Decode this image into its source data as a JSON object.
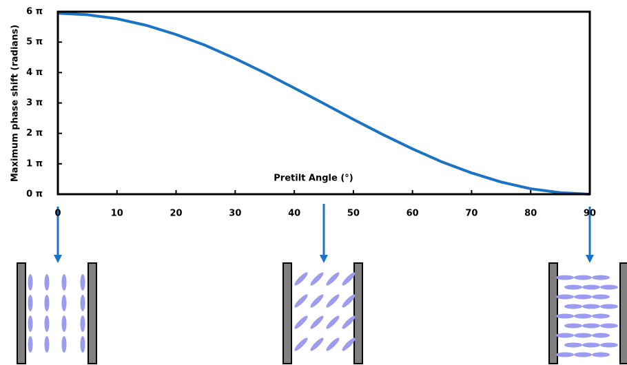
{
  "chart_data": {
    "type": "line",
    "x_label": "Pretilt Angle (°)",
    "y_label": "Maximum phase shift (radians)",
    "x": [
      0,
      5,
      10,
      15,
      20,
      25,
      30,
      35,
      40,
      45,
      50,
      55,
      60,
      65,
      70,
      75,
      80,
      85,
      90
    ],
    "series": [
      {
        "color": "#1a73c4",
        "values": [
          5.95,
          5.9,
          5.77,
          5.55,
          5.25,
          4.89,
          4.46,
          3.99,
          3.49,
          2.98,
          2.46,
          1.96,
          1.49,
          1.06,
          0.7,
          0.4,
          0.18,
          0.05,
          0
        ]
      }
    ],
    "xlim": [
      0,
      90
    ],
    "ylim": [
      0,
      6
    ],
    "xticks": [
      0,
      10,
      20,
      30,
      40,
      50,
      60,
      70,
      80,
      90
    ],
    "yticks": [
      {
        "value": 0,
        "label": "0 π"
      },
      {
        "value": 1,
        "label": "1 π"
      },
      {
        "value": 2,
        "label": "2 π"
      },
      {
        "value": 3,
        "label": "3 π"
      },
      {
        "value": 4,
        "label": "4 π"
      },
      {
        "value": 5,
        "label": "5 π"
      },
      {
        "value": 6,
        "label": "6 π"
      }
    ],
    "grid": false
  }
}
